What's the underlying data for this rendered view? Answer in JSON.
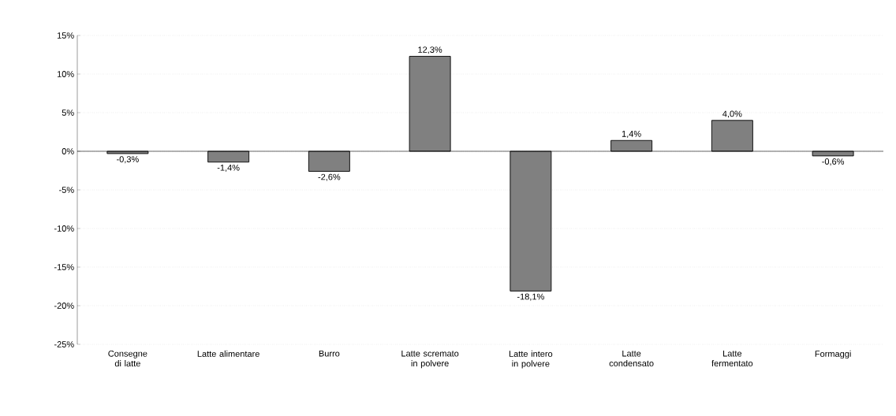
{
  "chart_data": {
    "type": "bar",
    "categories": [
      "Consegne di latte",
      "Latte alimentare",
      "Burro",
      "Latte scremato in polvere",
      "Latte intero in polvere",
      "Latte condensato",
      "Latte fermentato",
      "Formaggi"
    ],
    "values": [
      -0.3,
      -1.4,
      -2.6,
      12.3,
      -18.1,
      1.4,
      4.0,
      -0.6
    ],
    "value_labels": [
      "-0,3%",
      "-1,4%",
      "-2,6%",
      "12,3%",
      "-18,1%",
      "1,4%",
      "4,0%",
      "-0,6%"
    ],
    "color": "#808080",
    "ylim": [
      -25,
      15
    ],
    "yticks": [
      {
        "value": -25,
        "label": "-25%"
      },
      {
        "value": -20,
        "label": "-20%"
      },
      {
        "value": -15,
        "label": "-15%"
      },
      {
        "value": -10,
        "label": "-10%"
      },
      {
        "value": -5,
        "label": "-5%"
      },
      {
        "value": 0,
        "label": "0%"
      },
      {
        "value": 5,
        "label": "5%"
      },
      {
        "value": 10,
        "label": "10%"
      },
      {
        "value": 15,
        "label": "15%"
      }
    ],
    "grid": "y"
  }
}
